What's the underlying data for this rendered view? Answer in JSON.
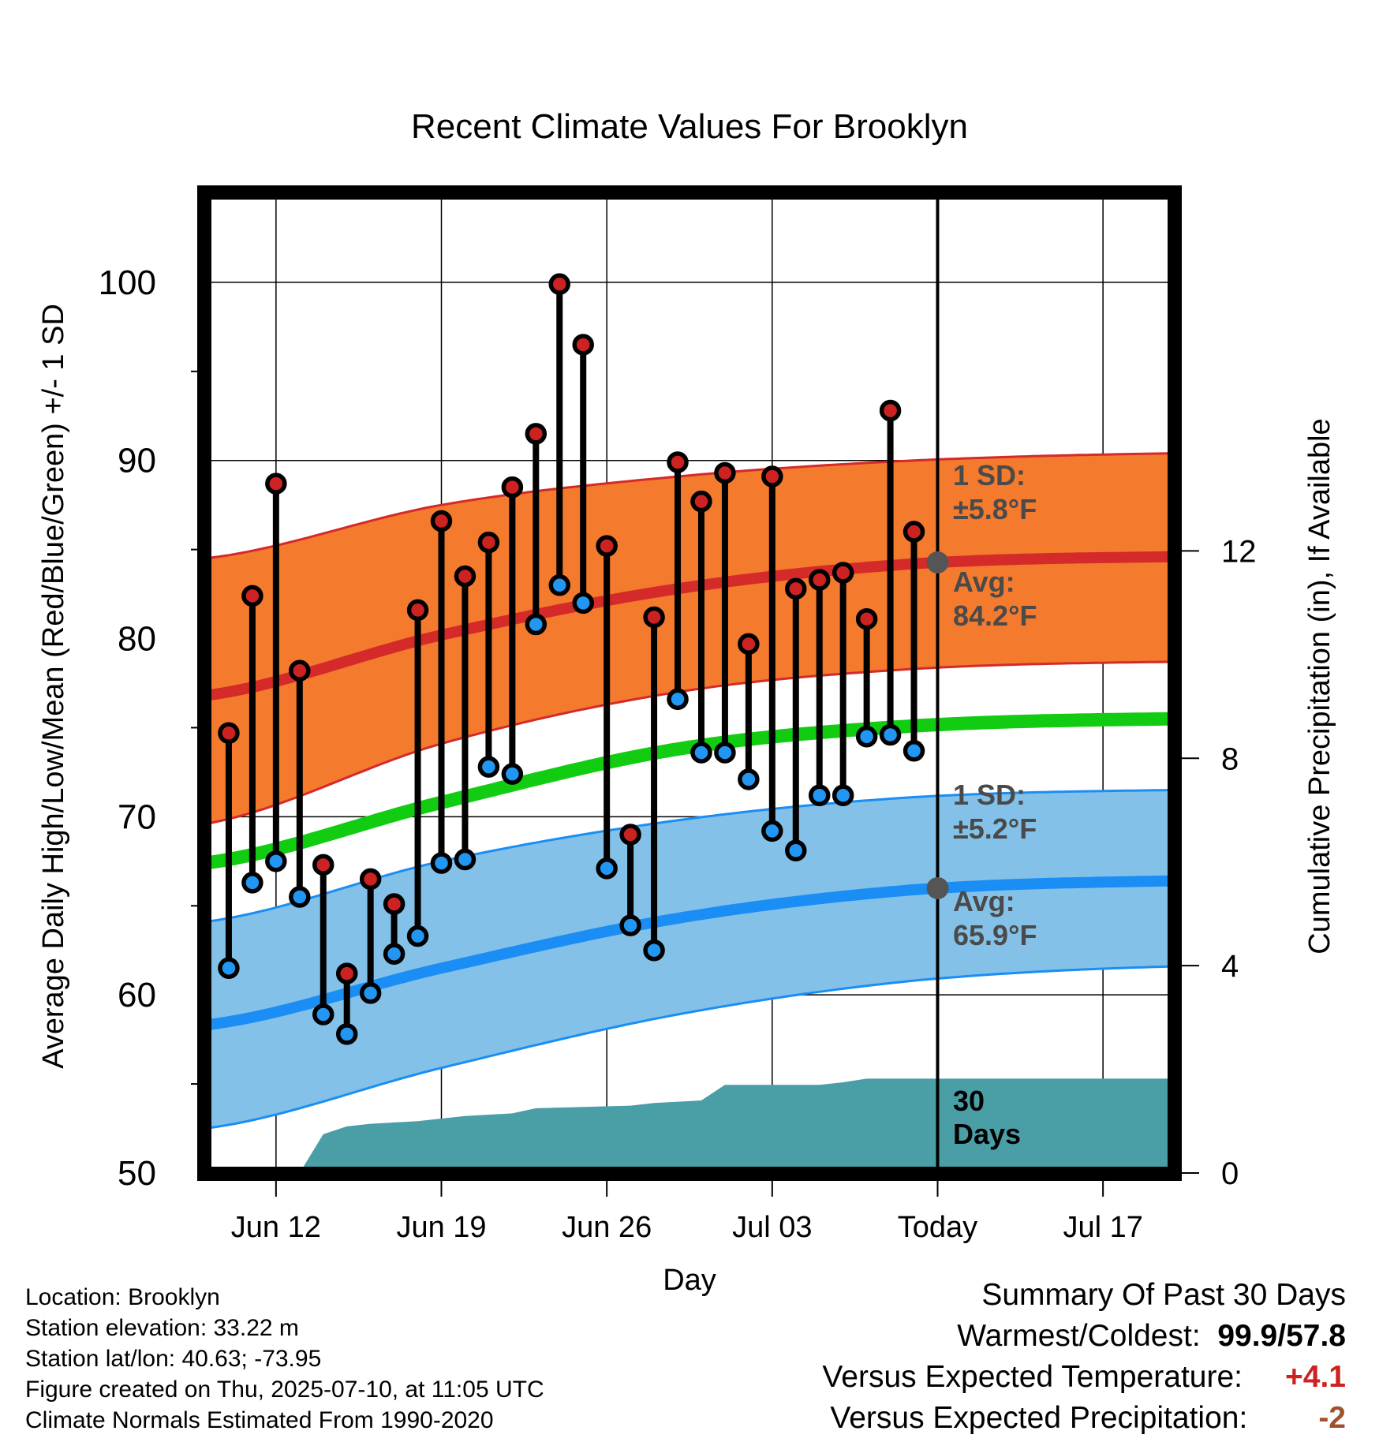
{
  "chart_data": {
    "type": "line",
    "title": "Recent Climate Values For Brooklyn",
    "xlabel": "Day",
    "ylabel": "Average Daily High/Low/Mean (Red/Blue/Green) +/- 1 SD",
    "y2label": "Cumulative Precipitation (in), If Available",
    "ylim": [
      50,
      105
    ],
    "y2lim": [
      0,
      18.9
    ],
    "y_ticks": [
      "50",
      "60",
      "70",
      "80",
      "90",
      "100"
    ],
    "y2_ticks": [
      "0",
      "4",
      "8",
      "12"
    ],
    "x_ticks": [
      "Jun 12",
      "Jun 19",
      "Jun 26",
      "Jul 03",
      "Today",
      "Jul 17"
    ],
    "grid": true,
    "x_start": "2025-06-09",
    "x_end": "2025-07-20",
    "today": "2025-07-10",
    "days": [
      "2025-06-10",
      "2025-06-11",
      "2025-06-12",
      "2025-06-13",
      "2025-06-14",
      "2025-06-15",
      "2025-06-16",
      "2025-06-17",
      "2025-06-18",
      "2025-06-19",
      "2025-06-20",
      "2025-06-21",
      "2025-06-22",
      "2025-06-23",
      "2025-06-24",
      "2025-06-25",
      "2025-06-26",
      "2025-06-27",
      "2025-06-28",
      "2025-06-29",
      "2025-06-30",
      "2025-07-01",
      "2025-07-02",
      "2025-07-03",
      "2025-07-04",
      "2025-07-05",
      "2025-07-06",
      "2025-07-07",
      "2025-07-08",
      "2025-07-09"
    ],
    "series": [
      {
        "name": "High",
        "color": "#cc2222",
        "values": [
          74.7,
          82.4,
          88.7,
          78.2,
          67.3,
          61.2,
          66.5,
          65.1,
          81.6,
          86.6,
          83.5,
          85.4,
          88.5,
          91.5,
          99.9,
          96.5,
          85.2,
          69.0,
          81.2,
          89.9,
          87.7,
          89.3,
          79.7,
          89.1,
          82.8,
          83.3,
          83.7,
          81.1,
          92.8,
          86.0
        ]
      },
      {
        "name": "Low",
        "color": "#2196f3",
        "values": [
          61.5,
          66.3,
          67.5,
          65.5,
          58.9,
          57.8,
          60.1,
          62.3,
          63.3,
          67.4,
          67.6,
          72.8,
          72.4,
          80.8,
          83.0,
          82.0,
          67.1,
          63.9,
          62.5,
          76.6,
          73.6,
          73.6,
          72.1,
          69.2,
          68.1,
          71.2,
          71.2,
          74.5,
          74.6,
          73.7
        ]
      }
    ],
    "normals": {
      "dates": [
        "2025-06-09",
        "2025-06-19",
        "2025-06-29",
        "2025-07-09",
        "2025-07-20"
      ],
      "avg_high": [
        76.8,
        80.2,
        82.8,
        84.2,
        84.6
      ],
      "high_sd_upper": [
        84.5,
        87.5,
        89.1,
        90.0,
        90.4
      ],
      "high_sd_lower": [
        69.6,
        74.1,
        77.0,
        78.3,
        78.7
      ],
      "avg_mean": [
        67.4,
        70.8,
        73.8,
        75.1,
        75.5
      ],
      "avg_low": [
        58.3,
        61.5,
        64.3,
        65.9,
        66.4
      ],
      "low_sd_upper": [
        64.1,
        67.5,
        69.8,
        71.1,
        71.5
      ],
      "low_sd_lower": [
        52.5,
        55.9,
        58.9,
        60.8,
        61.6
      ],
      "colors": {
        "high_band": "#f47a2d",
        "high_line": "#d42a2a",
        "mean_line": "#11cc11",
        "low_band": "#84c1e8",
        "low_line": "#1a8ef4",
        "precip": "#4a9ea6"
      }
    },
    "precipitation": {
      "dates": [
        "2025-06-13",
        "2025-06-14",
        "2025-06-15",
        "2025-06-16",
        "2025-06-18",
        "2025-06-20",
        "2025-06-22",
        "2025-06-23",
        "2025-06-27",
        "2025-06-28",
        "2025-06-30",
        "2025-07-01",
        "2025-07-05",
        "2025-07-06",
        "2025-07-07",
        "2025-07-08",
        "2025-07-20"
      ],
      "values": [
        0.0,
        0.75,
        0.9,
        0.95,
        1.0,
        1.1,
        1.15,
        1.25,
        1.3,
        1.35,
        1.4,
        1.7,
        1.7,
        1.75,
        1.82,
        1.82,
        1.82
      ]
    },
    "annotations": {
      "high_sd_label": "1 SD:",
      "high_sd_value": "±5.8°F",
      "high_avg_label": "Avg:",
      "high_avg_value": "84.2°F",
      "low_sd_label": "1 SD:",
      "low_sd_value": "±5.2°F",
      "low_avg_label": "Avg:",
      "low_avg_value": "65.9°F",
      "precip_label_1": "30",
      "precip_label_2": "Days"
    }
  },
  "station_info": {
    "location": "Location: Brooklyn",
    "elevation": "Station elevation: 33.22 m",
    "latlon": "Station lat/lon: 40.63; -73.95",
    "created": "Figure created on Thu, 2025-07-10, at 11:05 UTC",
    "normals": "Climate Normals Estimated From 1990-2020"
  },
  "summary": {
    "title": "Summary Of Past 30 Days",
    "warmest_label": "Warmest/Coldest:",
    "warmest_value": "99.9/57.8",
    "temp_label": "Versus Expected Temperature:",
    "temp_value": "+4.1",
    "temp_color": "#cc2222",
    "precip_label": "Versus Expected Precipitation:",
    "precip_value": "-2",
    "precip_color": "#a0522d"
  }
}
